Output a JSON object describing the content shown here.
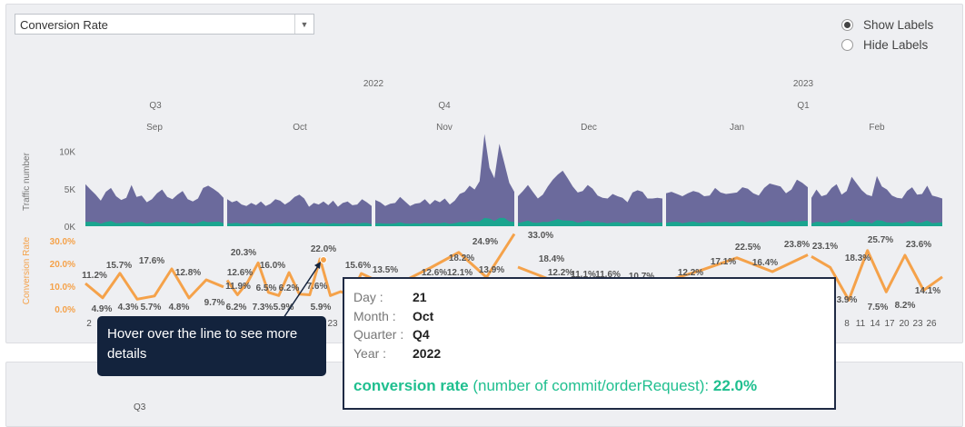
{
  "controls": {
    "metric_select": "Conversion Rate",
    "show_labels": "Show Labels",
    "hide_labels": "Hide Labels",
    "selected_option": "show"
  },
  "axis_headers": {
    "years": [
      "2022",
      "2023"
    ],
    "quarters": [
      "Q3",
      "Q4",
      "Q1"
    ],
    "months": [
      "Sep",
      "Oct",
      "Nov",
      "Dec",
      "Jan",
      "Feb"
    ]
  },
  "chart_data": [
    {
      "type": "area",
      "ylabel": "Traffic number",
      "y_ticks": [
        "10K",
        "5K",
        "0K"
      ],
      "ylim": [
        0,
        12000
      ],
      "grid": false,
      "colors": {
        "traffic": "#6b6a9c",
        "commits": "#1aa58f"
      },
      "months": [
        "Sep",
        "Oct",
        "Nov",
        "Dec",
        "Jan",
        "Feb"
      ],
      "monthly_series": [
        [
          5600,
          4900,
          4200,
          3400,
          4600,
          5100,
          4000,
          3500,
          3800,
          5500,
          3900,
          4100,
          3200,
          3600,
          4400,
          4900,
          3900,
          3600,
          4200,
          4700,
          3600,
          3300,
          3700,
          5100,
          5400,
          5000,
          4500,
          3800
        ],
        [
          3600,
          3200,
          3400,
          2900,
          2700,
          3100,
          2800,
          3300,
          2700,
          3000,
          3600,
          3400,
          2900,
          3300,
          3900,
          4200,
          3700,
          2600,
          3100,
          2900,
          3300,
          2800,
          3400,
          2600,
          3100,
          3300,
          2800,
          2900,
          3600,
          3200,
          2700
        ],
        [
          3500,
          3200,
          2700,
          3000,
          3100,
          3900,
          3300,
          2700,
          3000,
          3100,
          3600,
          2900,
          3500,
          3200,
          3700,
          2900,
          3400,
          4300,
          4600,
          5400,
          4900,
          6000,
          12300,
          7800,
          6400,
          11000,
          8400,
          5800,
          4600
        ],
        [
          4000,
          4700,
          5500,
          4600,
          3700,
          4200,
          5300,
          6200,
          6900,
          7400,
          6400,
          5300,
          4500,
          4700,
          5500,
          5000,
          4100,
          3800,
          3700,
          4300,
          4000,
          3800,
          3200,
          4500,
          4800,
          4600,
          3700,
          3700,
          3800,
          3700
        ],
        [
          4400,
          4600,
          4300,
          4000,
          4400,
          4700,
          4500,
          4000,
          4100,
          5100,
          4500,
          4300,
          4400,
          4500,
          5200,
          5000,
          4400,
          4100,
          5100,
          5700,
          5500,
          5300,
          4400,
          4900,
          6200,
          5800,
          5200
        ],
        [
          3800,
          4900,
          4000,
          4200,
          5100,
          5600,
          4200,
          4700,
          6600,
          5700,
          4800,
          4200,
          4000,
          6700,
          5300,
          4900,
          4100,
          3800,
          3700,
          4700,
          5200,
          4200,
          4300,
          5400,
          4100,
          3900,
          3700
        ]
      ]
    },
    {
      "type": "line",
      "ylabel": "Conversion Rate",
      "y_ticks": [
        "30.0%",
        "20.0%",
        "10.0%",
        "0.0%"
      ],
      "ylim": [
        0,
        30
      ],
      "color": "#f5a24a",
      "points": [
        [
          11.2,
          4.9,
          15.7,
          4.3,
          5.7,
          17.6,
          4.8,
          12.8,
          9.7
        ],
        [
          12.6,
          6.2,
          11.9,
          20.3,
          7.3,
          5.9,
          16.0,
          6.5,
          6.2,
          22.0,
          5.9,
          7.6,
          5.9,
          15.6,
          13.5
        ],
        [
          12.6,
          12.1,
          18.2,
          24.9,
          13.9,
          33.0
        ],
        [
          18.4,
          12.2,
          11.1,
          11.6,
          10.7
        ],
        [
          12.2,
          17.1,
          22.5,
          16.4,
          23.8
        ],
        [
          23.1,
          18.3,
          3.9,
          25.7,
          7.5,
          23.6,
          8.2,
          14.1
        ]
      ],
      "labels": [
        "11.2%",
        "4.9%",
        "15.7%",
        "4.3%",
        "5.7%",
        "17.6%",
        "4.8%",
        "12.8%",
        "9.7%",
        "20.3%",
        "12.6%",
        "6.2%",
        "11.9%",
        "7.3%",
        "5.9%",
        "16.0%",
        "6.5%",
        "6.2%",
        "22.0%",
        "7.6%",
        "5.9%",
        "15.6%",
        "13.5%",
        "12.6%",
        "12.1%",
        "18.2%",
        "24.9%",
        "13.9%",
        "33.0%",
        "18.4%",
        "12.2%",
        "11.1%",
        "11.6%",
        "10.7%",
        "12.2%",
        "17.1%",
        "22.5%",
        "16.4%",
        "23.8%",
        "23.1%",
        "18.3%",
        "3.9%",
        "25.7%",
        "7.5%",
        "23.6%",
        "8.2%",
        "14.1%"
      ],
      "x_tick_labels_visible": [
        "2",
        "23",
        "8",
        "11",
        "14",
        "17",
        "20",
        "23",
        "26"
      ]
    }
  ],
  "callout": {
    "text": "Hover over the line to see more details"
  },
  "tooltip": {
    "day_label": "Day :",
    "day": "21",
    "month_label": "Month :",
    "month": "Oct",
    "quarter_label": "Quarter :",
    "quarter": "Q4",
    "year_label": "Year :",
    "year": "2022",
    "metric_name": "conversion rate",
    "metric_desc": "(number of commit/orderRequest):",
    "metric_value": "22.0%"
  },
  "second_panel": {
    "quarter": "Q3"
  }
}
